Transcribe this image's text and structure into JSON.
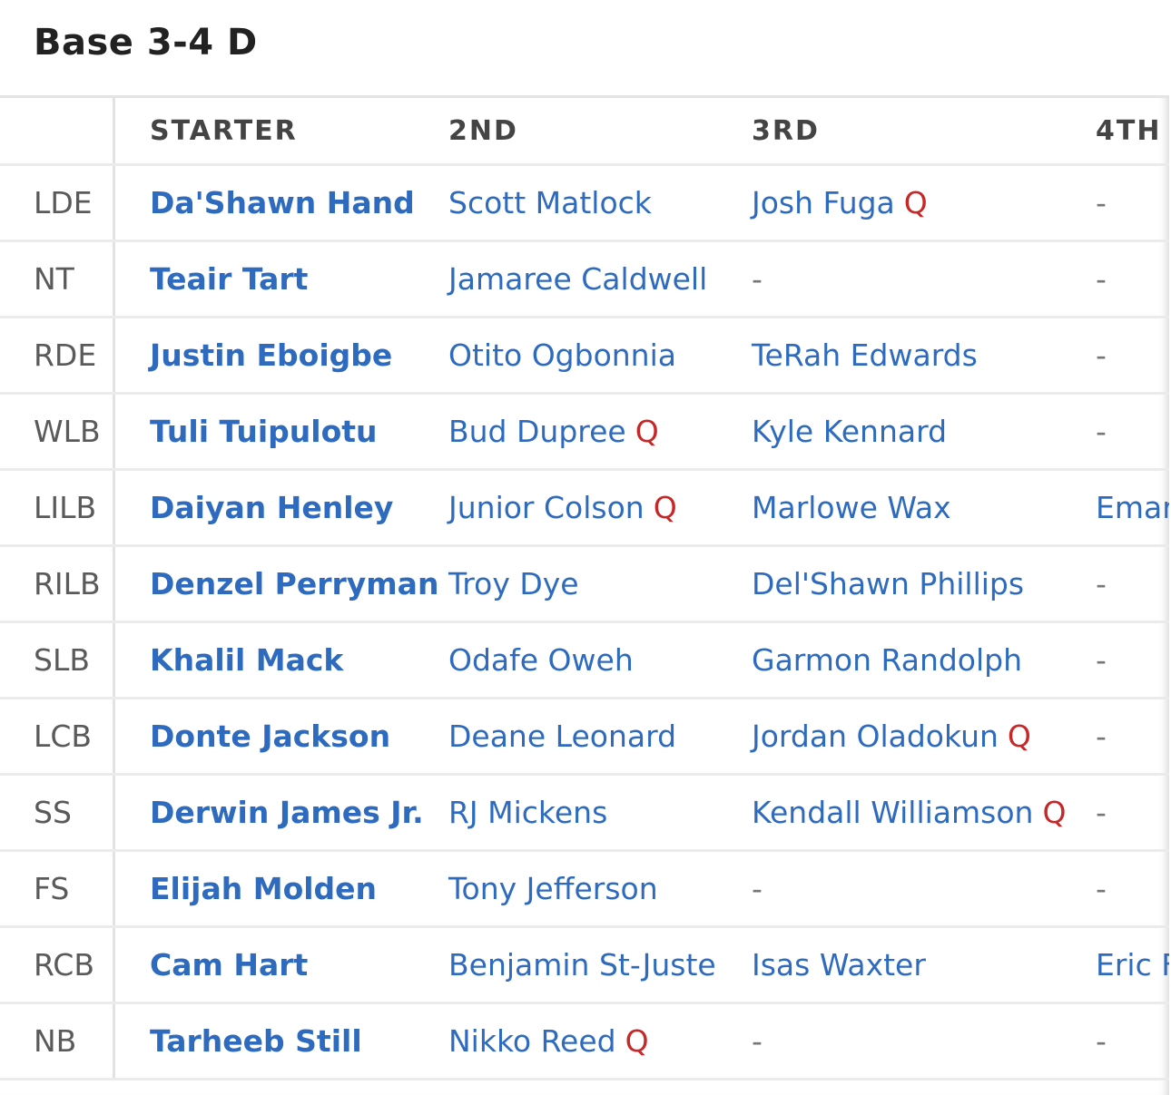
{
  "header": {
    "title": "Base 3-4 D"
  },
  "table": {
    "columns": [
      "STARTER",
      "2ND",
      "3RD",
      "4TH"
    ],
    "rows": [
      {
        "position": "LDE",
        "players": [
          {
            "name": "Da'Shawn Hand"
          },
          {
            "name": "Scott Matlock"
          },
          {
            "name": "Josh Fuga",
            "status": "Q"
          },
          {
            "placeholder": "-"
          }
        ]
      },
      {
        "position": "NT",
        "players": [
          {
            "name": "Teair Tart"
          },
          {
            "name": "Jamaree Caldwell"
          },
          {
            "placeholder": "-"
          },
          {
            "placeholder": "-"
          }
        ]
      },
      {
        "position": "RDE",
        "players": [
          {
            "name": "Justin Eboigbe"
          },
          {
            "name": "Otito Ogbonnia"
          },
          {
            "name": "TeRah Edwards"
          },
          {
            "placeholder": "-"
          }
        ]
      },
      {
        "position": "WLB",
        "players": [
          {
            "name": "Tuli Tuipulotu"
          },
          {
            "name": "Bud Dupree",
            "status": "Q"
          },
          {
            "name": "Kyle Kennard"
          },
          {
            "placeholder": "-"
          }
        ]
      },
      {
        "position": "LILB",
        "players": [
          {
            "name": "Daiyan Henley"
          },
          {
            "name": "Junior Colson",
            "status": "Q"
          },
          {
            "name": "Marlowe Wax"
          },
          {
            "name": "Emar"
          }
        ]
      },
      {
        "position": "RILB",
        "players": [
          {
            "name": "Denzel Perryman"
          },
          {
            "name": "Troy Dye"
          },
          {
            "name": "Del'Shawn Phillips"
          },
          {
            "placeholder": "-"
          }
        ]
      },
      {
        "position": "SLB",
        "players": [
          {
            "name": "Khalil Mack"
          },
          {
            "name": "Odafe Oweh"
          },
          {
            "name": "Garmon Randolph"
          },
          {
            "placeholder": "-"
          }
        ]
      },
      {
        "position": "LCB",
        "players": [
          {
            "name": "Donte Jackson"
          },
          {
            "name": "Deane Leonard"
          },
          {
            "name": "Jordan Oladokun",
            "status": "Q"
          },
          {
            "placeholder": "-"
          }
        ]
      },
      {
        "position": "SS",
        "players": [
          {
            "name": "Derwin James Jr."
          },
          {
            "name": "RJ Mickens"
          },
          {
            "name": "Kendall Williamson",
            "status": "Q"
          },
          {
            "placeholder": "-"
          }
        ]
      },
      {
        "position": "FS",
        "players": [
          {
            "name": "Elijah Molden"
          },
          {
            "name": "Tony Jefferson"
          },
          {
            "placeholder": "-"
          },
          {
            "placeholder": "-"
          }
        ]
      },
      {
        "position": "RCB",
        "players": [
          {
            "name": "Cam Hart"
          },
          {
            "name": "Benjamin St-Juste"
          },
          {
            "name": "Isas Waxter"
          },
          {
            "name": "Eric F"
          }
        ]
      },
      {
        "position": "NB",
        "players": [
          {
            "name": "Tarheeb Still"
          },
          {
            "name": "Nikko Reed",
            "status": "Q"
          },
          {
            "placeholder": "-"
          },
          {
            "placeholder": "-"
          }
        ]
      }
    ]
  }
}
